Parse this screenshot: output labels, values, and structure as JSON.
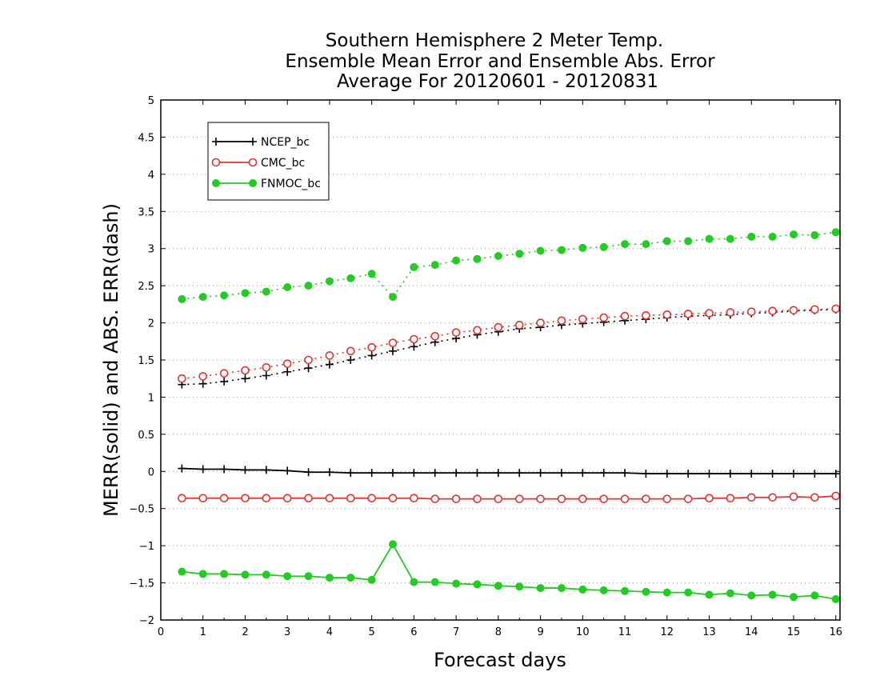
{
  "chart_data": {
    "type": "line",
    "title": [
      "Southern Hemisphere 2 Meter Temp.",
      "Ensemble Mean Error and Ensemble Abs. Error",
      "Average For 20120601 - 20120831"
    ],
    "xlabel": "Forecast days",
    "ylabel": "MERR(solid) and ABS. ERR(dash)",
    "xlim": [
      0,
      16.1
    ],
    "ylim": [
      -2,
      5
    ],
    "x_ticks": [
      0,
      1,
      2,
      3,
      4,
      5,
      6,
      7,
      8,
      9,
      10,
      11,
      12,
      13,
      14,
      15,
      16
    ],
    "y_ticks": [
      -2,
      -1.5,
      -1,
      -0.5,
      0,
      0.5,
      1,
      1.5,
      2,
      2.5,
      3,
      3.5,
      4,
      4.5,
      5
    ],
    "y_tick_labels": [
      "−2",
      "−1.5",
      "−1",
      "−0.5",
      "0",
      "0.5",
      "1",
      "1.5",
      "2",
      "2.5",
      "3",
      "3.5",
      "4",
      "4.5",
      "5"
    ],
    "grid": "horizontal dotted",
    "legend_position": "top-left",
    "x": [
      0.5,
      1,
      1.5,
      2,
      2.5,
      3,
      3.5,
      4,
      4.5,
      5,
      5.5,
      6,
      6.5,
      7,
      7.5,
      8,
      8.5,
      9,
      9.5,
      10,
      10.5,
      11,
      11.5,
      12,
      12.5,
      13,
      13.5,
      14,
      14.5,
      15,
      15.5,
      16
    ],
    "series": [
      {
        "name": "NCEP_bc",
        "color": "#000000",
        "marker": "plus",
        "merr": [
          0.04,
          0.03,
          0.03,
          0.02,
          0.02,
          0.01,
          -0.01,
          -0.01,
          -0.02,
          -0.02,
          -0.02,
          -0.02,
          -0.02,
          -0.02,
          -0.02,
          -0.02,
          -0.02,
          -0.02,
          -0.02,
          -0.02,
          -0.02,
          -0.02,
          -0.03,
          -0.03,
          -0.03,
          -0.03,
          -0.03,
          -0.03,
          -0.03,
          -0.03,
          -0.03,
          -0.03
        ],
        "abs_err": [
          1.17,
          1.18,
          1.21,
          1.25,
          1.29,
          1.34,
          1.39,
          1.44,
          1.5,
          1.56,
          1.62,
          1.68,
          1.74,
          1.79,
          1.84,
          1.88,
          1.92,
          1.94,
          1.97,
          1.99,
          2.01,
          2.03,
          2.05,
          2.07,
          2.09,
          2.1,
          2.11,
          2.13,
          2.14,
          2.16,
          2.17,
          2.18
        ]
      },
      {
        "name": "CMC_bc",
        "color": "#e83030",
        "marker": "open-circle",
        "merr": [
          -0.36,
          -0.36,
          -0.36,
          -0.36,
          -0.36,
          -0.36,
          -0.36,
          -0.36,
          -0.36,
          -0.36,
          -0.36,
          -0.36,
          -0.37,
          -0.37,
          -0.37,
          -0.37,
          -0.37,
          -0.37,
          -0.37,
          -0.37,
          -0.37,
          -0.37,
          -0.37,
          -0.37,
          -0.37,
          -0.36,
          -0.36,
          -0.35,
          -0.35,
          -0.34,
          -0.35,
          -0.33
        ],
        "abs_err": [
          1.25,
          1.28,
          1.32,
          1.36,
          1.4,
          1.45,
          1.5,
          1.56,
          1.62,
          1.67,
          1.73,
          1.78,
          1.82,
          1.87,
          1.9,
          1.94,
          1.97,
          2.0,
          2.03,
          2.05,
          2.07,
          2.09,
          2.1,
          2.11,
          2.12,
          2.13,
          2.14,
          2.15,
          2.16,
          2.17,
          2.18,
          2.19
        ]
      },
      {
        "name": "FNMOC_bc",
        "color": "#22cc22",
        "marker": "filled-circle",
        "merr": [
          -1.35,
          -1.38,
          -1.38,
          -1.39,
          -1.39,
          -1.41,
          -1.41,
          -1.43,
          -1.43,
          -1.46,
          -0.98,
          -1.49,
          -1.49,
          -1.51,
          -1.52,
          -1.54,
          -1.55,
          -1.57,
          -1.57,
          -1.59,
          -1.6,
          -1.61,
          -1.62,
          -1.63,
          -1.63,
          -1.66,
          -1.64,
          -1.67,
          -1.66,
          -1.69,
          -1.67,
          -1.72
        ],
        "abs_err": [
          2.32,
          2.35,
          2.37,
          2.4,
          2.42,
          2.48,
          2.5,
          2.56,
          2.6,
          2.66,
          2.35,
          2.75,
          2.78,
          2.84,
          2.86,
          2.9,
          2.93,
          2.97,
          2.98,
          3.01,
          3.02,
          3.06,
          3.06,
          3.1,
          3.1,
          3.13,
          3.13,
          3.16,
          3.16,
          3.19,
          3.18,
          3.22
        ]
      }
    ]
  }
}
